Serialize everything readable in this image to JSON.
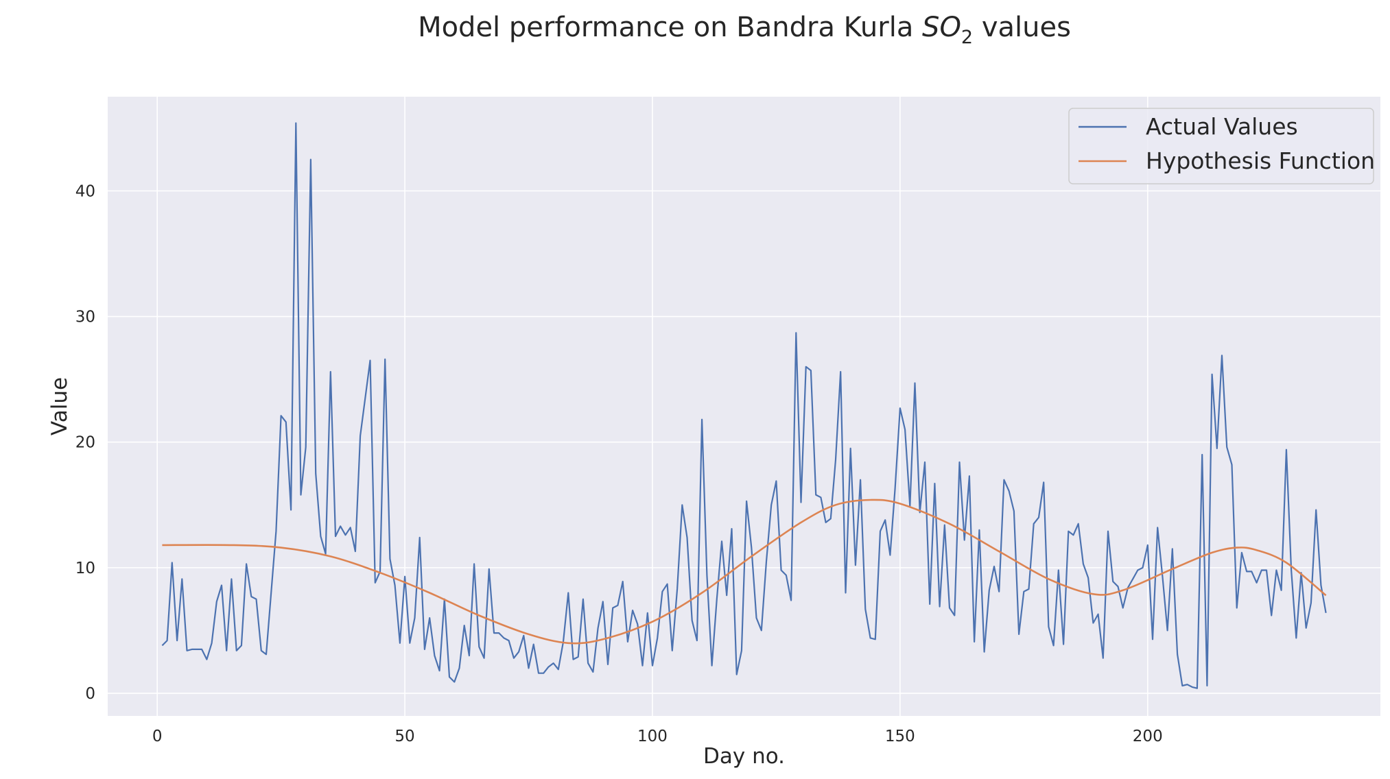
{
  "chart_data": {
    "type": "line",
    "title_prefix": "Model performance on Bandra Kurla ",
    "title_chem_base": "SO",
    "title_chem_sub": "2",
    "title_suffix": " values",
    "xlabel": "Day no.",
    "ylabel": "Value",
    "xlim": [
      -10,
      247
    ],
    "ylim": [
      -1.8,
      47.5
    ],
    "xticks": [
      0,
      50,
      100,
      150,
      200
    ],
    "yticks": [
      0,
      10,
      20,
      30,
      40
    ],
    "grid": true,
    "background": "#EAEAF2",
    "legend_position": "upper right",
    "series": [
      {
        "name": "Actual Values",
        "color": "#4C72B0",
        "x_start": 1,
        "values": [
          3.8,
          4.2,
          10.4,
          4.2,
          9.1,
          3.4,
          3.5,
          3.5,
          3.5,
          2.7,
          4.0,
          7.3,
          8.6,
          3.4,
          9.1,
          3.4,
          3.8,
          10.3,
          7.7,
          7.5,
          3.4,
          3.1,
          8.0,
          12.9,
          22.1,
          21.6,
          14.6,
          45.4,
          15.8,
          19.6,
          42.5,
          17.5,
          12.5,
          11.1,
          25.6,
          12.5,
          13.3,
          12.6,
          13.2,
          11.3,
          20.5,
          23.5,
          26.5,
          8.8,
          9.7,
          26.6,
          10.7,
          8.6,
          4.0,
          9.3,
          4.0,
          6.0,
          12.4,
          3.5,
          6.0,
          3.0,
          1.8,
          7.5,
          1.3,
          0.9,
          2.0,
          5.4,
          3.0,
          10.3,
          3.7,
          2.8,
          9.9,
          4.8,
          4.8,
          4.4,
          4.2,
          2.8,
          3.3,
          4.6,
          2.0,
          3.9,
          1.6,
          1.6,
          2.1,
          2.4,
          1.9,
          4.1,
          8.0,
          2.7,
          2.9,
          7.5,
          2.4,
          1.7,
          5.2,
          7.3,
          2.3,
          6.8,
          7.0,
          8.9,
          4.1,
          6.6,
          5.5,
          2.2,
          6.4,
          2.2,
          4.4,
          8.1,
          8.7,
          3.4,
          8.3,
          15.0,
          12.4,
          5.8,
          4.2,
          21.8,
          9.4,
          2.2,
          7.5,
          12.1,
          7.8,
          13.1,
          1.5,
          3.4,
          15.3,
          11.6,
          6.0,
          5.0,
          10.5,
          15.0,
          16.9,
          9.8,
          9.4,
          7.4,
          28.7,
          15.2,
          26.0,
          25.7,
          15.8,
          15.6,
          13.6,
          13.9,
          18.6,
          25.6,
          8.0,
          19.5,
          10.2,
          17.0,
          6.7,
          4.4,
          4.3,
          12.9,
          13.8,
          11.0,
          16.3,
          22.7,
          21.0,
          14.9,
          24.7,
          14.4,
          18.4,
          7.1,
          16.7,
          6.9,
          13.4,
          6.8,
          6.2,
          18.4,
          12.2,
          17.3,
          4.1,
          13.0,
          3.3,
          8.2,
          10.1,
          8.1,
          17.0,
          16.1,
          14.5,
          4.7,
          8.1,
          8.3,
          13.5,
          14.0,
          16.8,
          5.3,
          3.8,
          9.8,
          3.9,
          12.9,
          12.6,
          13.5,
          10.3,
          9.2,
          5.6,
          6.3,
          2.8,
          12.9,
          8.9,
          8.5,
          6.8,
          8.4,
          9.1,
          9.8,
          10.0,
          11.8,
          4.3,
          13.2,
          9.3,
          5.0,
          11.5,
          3.1,
          0.6,
          0.7,
          0.5,
          0.4,
          19.0,
          0.6,
          25.4,
          19.5,
          26.9,
          19.6,
          18.2,
          6.8,
          11.2,
          9.7,
          9.7,
          8.8,
          9.8,
          9.8,
          6.2,
          9.8,
          8.2,
          19.4,
          9.8,
          4.4,
          9.6,
          5.2,
          7.2,
          14.6,
          8.6,
          6.4
        ]
      },
      {
        "name": "Hypothesis Function",
        "color": "#DD8452",
        "curve": [
          [
            1,
            11.8
          ],
          [
            15,
            11.8
          ],
          [
            25,
            11.6
          ],
          [
            35,
            10.9
          ],
          [
            45,
            9.6
          ],
          [
            55,
            8.0
          ],
          [
            65,
            6.2
          ],
          [
            75,
            4.7
          ],
          [
            83,
            4.0
          ],
          [
            90,
            4.3
          ],
          [
            100,
            5.7
          ],
          [
            110,
            8.0
          ],
          [
            120,
            10.9
          ],
          [
            130,
            13.6
          ],
          [
            137,
            15.0
          ],
          [
            144,
            15.4
          ],
          [
            150,
            15.1
          ],
          [
            160,
            13.5
          ],
          [
            170,
            11.3
          ],
          [
            180,
            9.1
          ],
          [
            189,
            7.9
          ],
          [
            195,
            8.2
          ],
          [
            205,
            9.9
          ],
          [
            213,
            11.2
          ],
          [
            218,
            11.6
          ],
          [
            222,
            11.4
          ],
          [
            228,
            10.4
          ],
          [
            236,
            7.8
          ]
        ]
      }
    ]
  }
}
